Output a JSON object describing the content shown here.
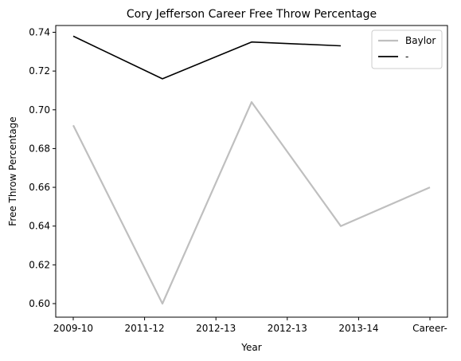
{
  "chart_data": {
    "type": "line",
    "title": "Cory Jefferson Career Free Throw Percentage",
    "xlabel": "Year",
    "ylabel": "Free Throw Percentage",
    "categories": [
      "2009-10",
      "2011-12",
      "2012-13",
      "2012-13",
      "2013-14",
      "Career-"
    ],
    "x_ticks": [
      0,
      1,
      2,
      3,
      4,
      5
    ],
    "ylim": [
      0.593,
      0.7435
    ],
    "yticks": [
      0.6,
      0.62,
      0.64,
      0.66,
      0.68,
      0.7,
      0.72,
      0.74
    ],
    "ytick_labels": [
      "0.60",
      "0.62",
      "0.64",
      "0.66",
      "0.68",
      "0.70",
      "0.72",
      "0.74"
    ],
    "grid": false,
    "legend_position": "top-right",
    "series": [
      {
        "name": "Baylor",
        "color": "#bfbfbf",
        "points": [
          [
            0,
            0.692
          ],
          [
            1,
            0.6
          ],
          [
            2,
            0.704
          ],
          [
            3,
            0.64
          ],
          [
            4,
            0.66
          ]
        ],
        "x_positions": [
          0,
          1.0,
          2.0,
          3.0,
          4.0
        ]
      },
      {
        "name": "-",
        "color": "#000000",
        "points": [
          [
            0,
            0.738
          ],
          [
            1,
            0.716
          ],
          [
            2,
            0.735
          ],
          [
            3,
            0.733
          ]
        ],
        "x_positions": [
          0,
          1.0,
          2.0,
          3.0
        ]
      }
    ]
  }
}
